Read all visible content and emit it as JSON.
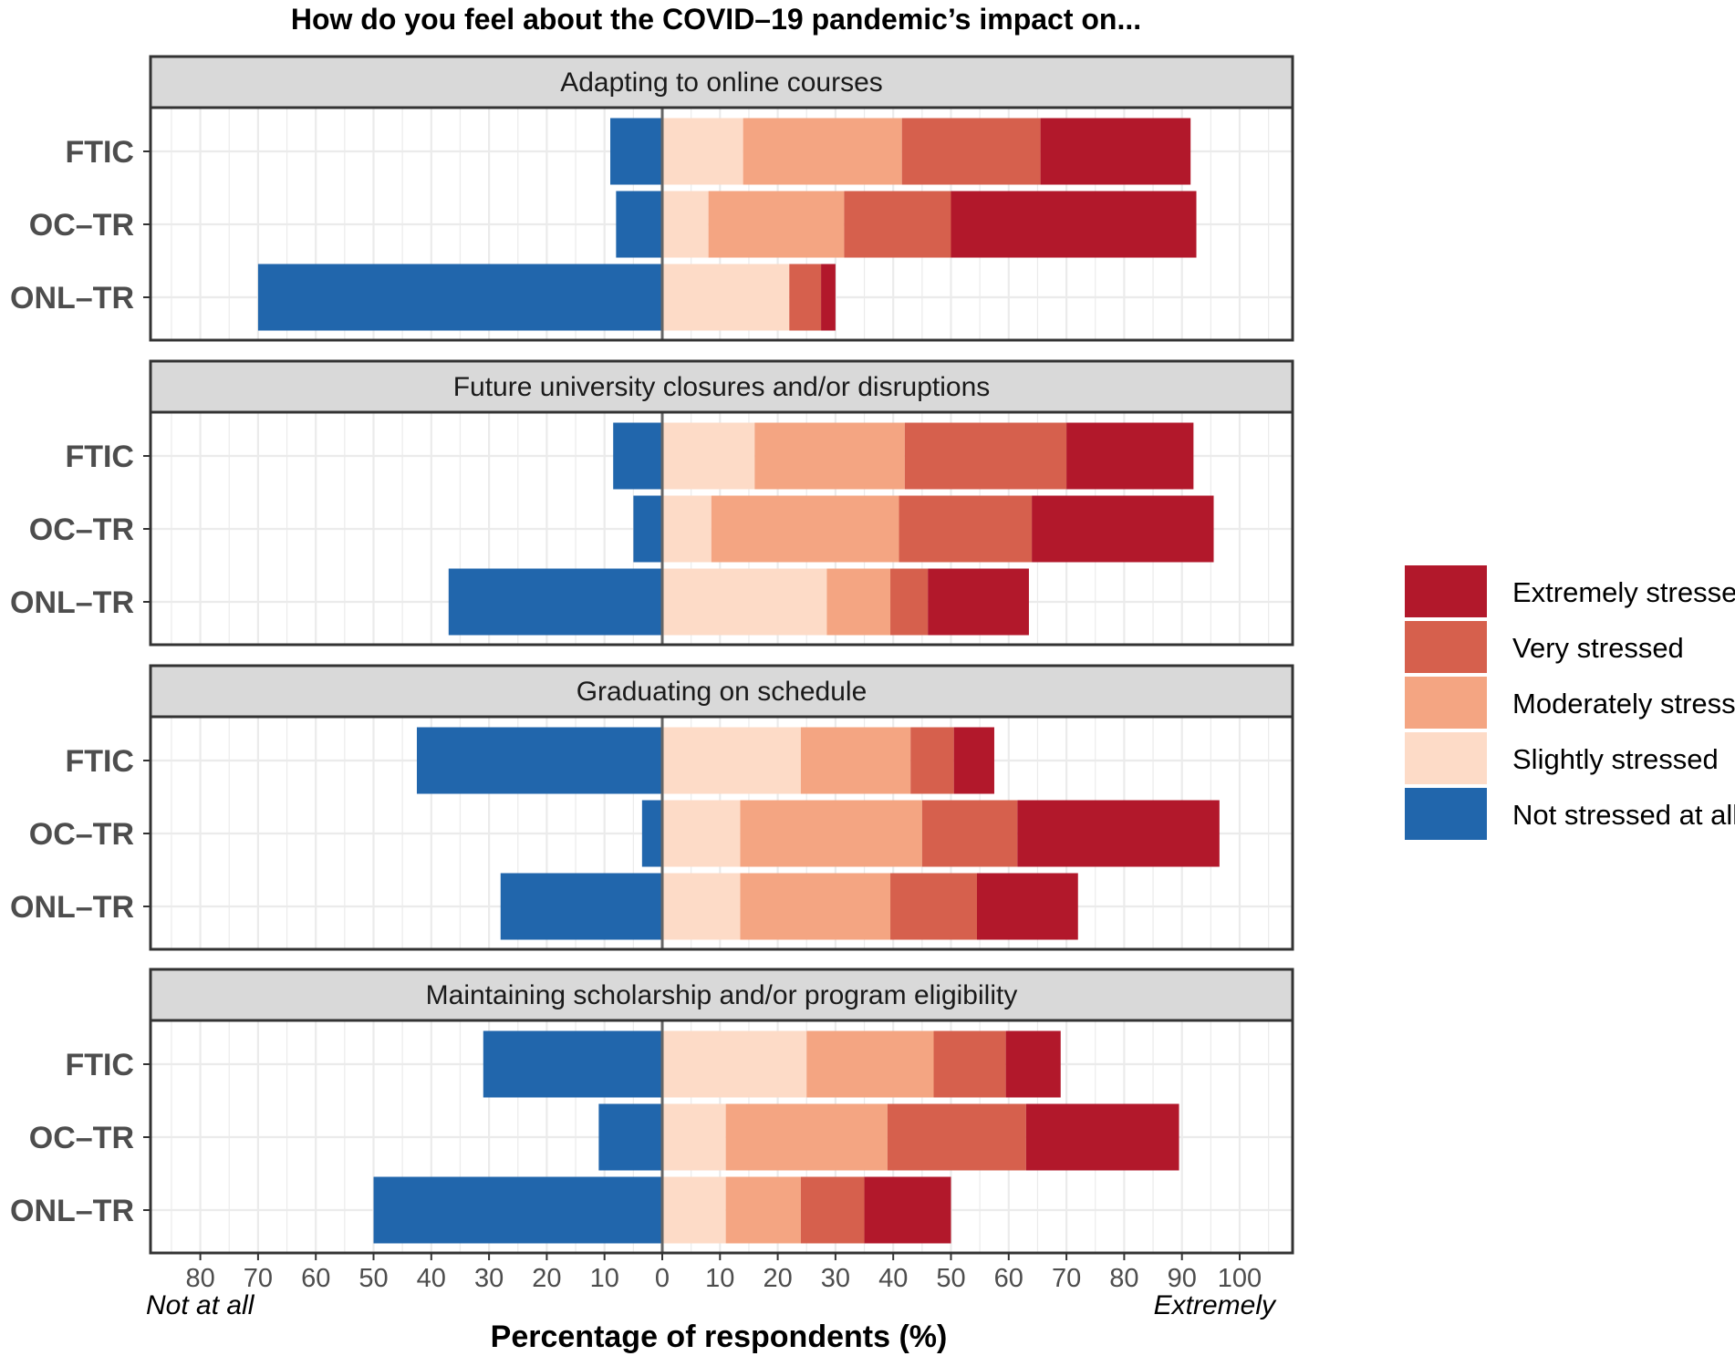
{
  "chart_data": {
    "type": "bar",
    "subtype": "diverging-stacked-horizontal",
    "title": "How do you feel about the COVID–19 pandemic’s impact on...",
    "xlabel": "Percentage of respondents (%)",
    "x_annotations": {
      "left": "Not at all",
      "right": "Extremely"
    },
    "xlim": [
      -89,
      110
    ],
    "x_ticks": [
      {
        "value": -80,
        "label": "80"
      },
      {
        "value": -70,
        "label": "70"
      },
      {
        "value": -60,
        "label": "60"
      },
      {
        "value": -50,
        "label": "50"
      },
      {
        "value": -40,
        "label": "40"
      },
      {
        "value": -30,
        "label": "30"
      },
      {
        "value": -20,
        "label": "20"
      },
      {
        "value": -10,
        "label": "10"
      },
      {
        "value": 0,
        "label": "0"
      },
      {
        "value": 10,
        "label": "10"
      },
      {
        "value": 20,
        "label": "20"
      },
      {
        "value": 30,
        "label": "30"
      },
      {
        "value": 40,
        "label": "40"
      },
      {
        "value": 50,
        "label": "50"
      },
      {
        "value": 60,
        "label": "60"
      },
      {
        "value": 70,
        "label": "70"
      },
      {
        "value": 80,
        "label": "80"
      },
      {
        "value": 90,
        "label": "90"
      },
      {
        "value": 100,
        "label": "100"
      }
    ],
    "groups": [
      "FTIC",
      "OC–TR",
      "ONL–TR"
    ],
    "series": [
      {
        "key": "not",
        "name": "Not stressed at all",
        "color": "#2166AC",
        "side": "negative"
      },
      {
        "key": "slightly",
        "name": "Slightly stressed",
        "color": "#FDDBC7",
        "side": "positive"
      },
      {
        "key": "moderately",
        "name": "Moderately stressed",
        "color": "#F4A582",
        "side": "positive"
      },
      {
        "key": "very",
        "name": "Very stressed",
        "color": "#D6604D",
        "side": "positive"
      },
      {
        "key": "extremely",
        "name": "Extremely stressed",
        "color": "#B2182B",
        "side": "positive"
      }
    ],
    "legend_order": [
      "extremely",
      "very",
      "moderately",
      "slightly",
      "not"
    ],
    "legend_position": "right",
    "panels": [
      {
        "title": "Adapting to online courses",
        "rows": [
          {
            "group": "FTIC",
            "not": 9,
            "slightly": 14,
            "moderately": 27.5,
            "very": 24,
            "extremely": 26
          },
          {
            "group": "OC–TR",
            "not": 8,
            "slightly": 8,
            "moderately": 23.5,
            "very": 18.5,
            "extremely": 42.5
          },
          {
            "group": "ONL–TR",
            "not": 70,
            "slightly": 22,
            "moderately": 0,
            "very": 5.5,
            "extremely": 2.5
          }
        ]
      },
      {
        "title": "Future university closures and/or disruptions",
        "rows": [
          {
            "group": "FTIC",
            "not": 8.5,
            "slightly": 16,
            "moderately": 26,
            "very": 28,
            "extremely": 22
          },
          {
            "group": "OC–TR",
            "not": 5,
            "slightly": 8.5,
            "moderately": 32.5,
            "very": 23,
            "extremely": 31.5
          },
          {
            "group": "ONL–TR",
            "not": 37,
            "slightly": 28.5,
            "moderately": 11,
            "very": 6.5,
            "extremely": 17.5
          }
        ]
      },
      {
        "title": "Graduating on schedule",
        "rows": [
          {
            "group": "FTIC",
            "not": 42.5,
            "slightly": 24,
            "moderately": 19,
            "very": 7.5,
            "extremely": 7
          },
          {
            "group": "OC–TR",
            "not": 3.5,
            "slightly": 13.5,
            "moderately": 31.5,
            "very": 16.5,
            "extremely": 35
          },
          {
            "group": "ONL–TR",
            "not": 28,
            "slightly": 13.5,
            "moderately": 26,
            "very": 15,
            "extremely": 17.5
          }
        ]
      },
      {
        "title": "Maintaining scholarship and/or program eligibility",
        "rows": [
          {
            "group": "FTIC",
            "not": 31,
            "slightly": 25,
            "moderately": 22,
            "very": 12.5,
            "extremely": 9.5
          },
          {
            "group": "OC–TR",
            "not": 11,
            "slightly": 11,
            "moderately": 28,
            "very": 24,
            "extremely": 26.5
          },
          {
            "group": "ONL–TR",
            "not": 50,
            "slightly": 11,
            "moderately": 13,
            "very": 11,
            "extremely": 15
          }
        ]
      }
    ]
  }
}
